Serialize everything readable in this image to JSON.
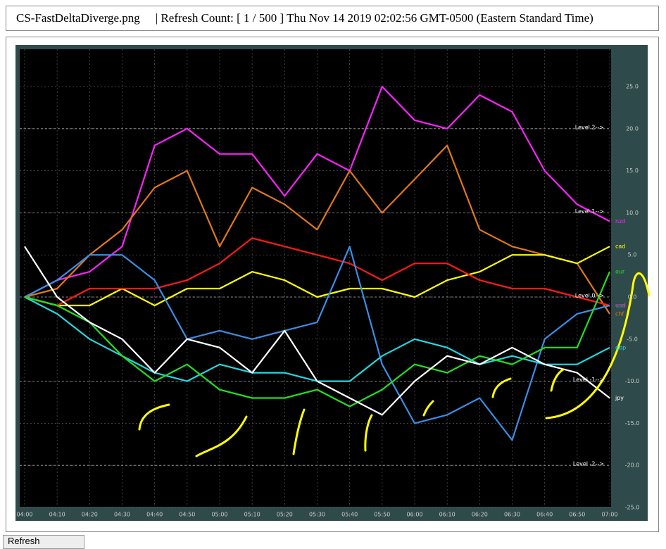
{
  "header": {
    "filename": "CS-FastDeltaDiverge.png",
    "status": "| Refresh Count: [ 1 / 500 ] Thu Nov 14 2019 02:02:56 GMT-0500 (Eastern Standard Time)"
  },
  "button": "Refresh",
  "chart_data": {
    "type": "line",
    "categories": [
      "04:00",
      "04:10",
      "04:20",
      "04:30",
      "04:40",
      "04:50",
      "05:00",
      "05:10",
      "05:20",
      "05:30",
      "05:40",
      "05:50",
      "06:00",
      "06:10",
      "06:20",
      "06:30",
      "06:40",
      "06:50",
      "07:00"
    ],
    "ylim": [
      -25,
      25
    ],
    "yticks": [
      {
        "value": 25,
        "label": "25.0"
      },
      {
        "value": 20,
        "label": "20.0"
      },
      {
        "value": 15,
        "label": "15.0"
      },
      {
        "value": 10,
        "label": "10.0"
      },
      {
        "value": 5,
        "label": "5.0"
      },
      {
        "value": 0,
        "label": "0.0"
      },
      {
        "value": -5,
        "label": "-5.0"
      },
      {
        "value": -10,
        "label": "-10.0"
      },
      {
        "value": -15,
        "label": "-15.0"
      },
      {
        "value": -20,
        "label": "-20.0"
      },
      {
        "value": -25,
        "label": "-25.0"
      }
    ],
    "grid": true,
    "levels": [
      {
        "value": 20,
        "label": "Level 2-->"
      },
      {
        "value": 10,
        "label": "Level 1-->"
      },
      {
        "value": 0,
        "label": "Level 0-->"
      },
      {
        "value": -10,
        "label": "Level -1-->"
      },
      {
        "value": -20,
        "label": "Level -2-->"
      }
    ],
    "series": [
      {
        "name": "nzd",
        "color": "#ff22ff",
        "values": [
          0,
          2,
          3,
          6,
          18,
          20,
          17,
          17,
          12,
          17,
          15,
          25,
          21,
          20,
          24,
          22,
          15,
          11,
          9
        ]
      },
      {
        "name": "chf",
        "color": "#e07818",
        "values": [
          0,
          1,
          5,
          8,
          13,
          15,
          6,
          13,
          11,
          8,
          15,
          10,
          14,
          18,
          8,
          6,
          5,
          4,
          -2
        ]
      },
      {
        "name": "cad",
        "color": "#ffff00",
        "values": [
          0,
          -1,
          -1,
          1,
          -1,
          1,
          1,
          3,
          2,
          0,
          1,
          1,
          0,
          2,
          3,
          5,
          5,
          4,
          6
        ]
      },
      {
        "name": "aud",
        "color": "#ff1a1a",
        "values": [
          0,
          -1,
          1,
          1,
          1,
          2,
          4,
          7,
          6,
          5,
          4,
          2,
          4,
          4,
          2,
          1,
          1,
          0,
          -1
        ]
      },
      {
        "name": "usd",
        "color": "#3a8ee6",
        "values": [
          0,
          2,
          5,
          5,
          2,
          -5,
          -4,
          -5,
          -4,
          -3,
          6,
          -8,
          -15,
          -14,
          -12,
          -17,
          -5,
          -2,
          -1
        ]
      },
      {
        "name": "gbp",
        "color": "#22d8e0",
        "values": [
          0,
          -2,
          -5,
          -7,
          -9,
          -10,
          -8,
          -9,
          -9,
          -10,
          -10,
          -7,
          -5,
          -6,
          -8,
          -7,
          -8,
          -8,
          -6
        ]
      },
      {
        "name": "eur",
        "color": "#22e022",
        "values": [
          0,
          -1,
          -3,
          -7,
          -10,
          -8,
          -11,
          -12,
          -12,
          -11,
          -13,
          -11,
          -8,
          -9,
          -7,
          -8,
          -6,
          -6,
          3
        ]
      },
      {
        "name": "jpy",
        "color": "#ffffff",
        "values": [
          6,
          0,
          -3,
          -5,
          -9,
          -5,
          -6,
          -9,
          -4,
          -10,
          -12,
          -14,
          -10,
          -7,
          -8,
          -6,
          -8,
          -9,
          -12
        ]
      }
    ]
  }
}
